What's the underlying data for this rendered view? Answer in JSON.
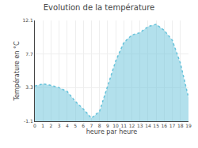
{
  "chart_data": {
    "type": "area",
    "title": "Evolution de la température",
    "xlabel": "heure par heure",
    "ylabel": "Température en °C",
    "x": [
      0,
      1,
      2,
      3,
      4,
      5,
      6,
      7,
      8,
      9,
      10,
      11,
      12,
      13,
      14,
      15,
      16,
      17,
      18,
      19
    ],
    "values": [
      3.5,
      3.8,
      3.6,
      3.3,
      2.8,
      1.5,
      0.5,
      -0.7,
      0.2,
      3.5,
      6.8,
      9.2,
      10.2,
      10.5,
      11.3,
      11.6,
      10.8,
      9.5,
      6.5,
      2.0
    ],
    "xlim": [
      0,
      19
    ],
    "xticks": [
      0,
      1,
      2,
      3,
      4,
      5,
      6,
      7,
      8,
      9,
      10,
      11,
      12,
      13,
      14,
      15,
      16,
      17,
      18,
      19
    ],
    "ylim": [
      -1.1,
      12.1
    ],
    "yticks": [
      -1.1,
      3.3,
      7.7,
      12.1
    ],
    "color": "#66c2da",
    "line_style": "dotted",
    "grid": true
  }
}
